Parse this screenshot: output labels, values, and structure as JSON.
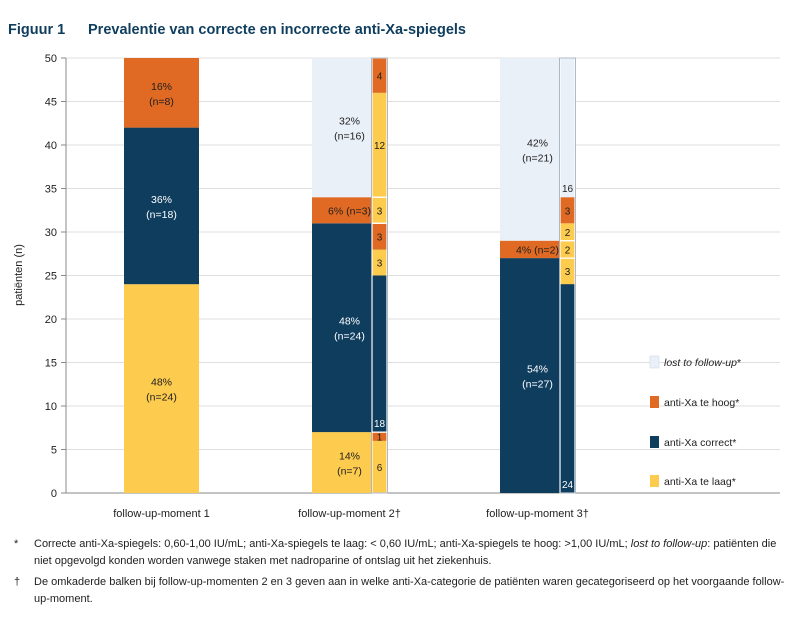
{
  "figure": {
    "label": "Figuur 1",
    "title": "Prevalentie van correcte en incorrecte anti-Xa-spiegels"
  },
  "colors": {
    "lost": "#eaf0f8",
    "hoog": "#e06a23",
    "correct": "#0e3d5e",
    "laag": "#fdcb4e",
    "axis": "#8a8a8a",
    "grid": "#d4d4d4"
  },
  "chart_data": {
    "type": "bar",
    "stacked": true,
    "ylabel": "patiënten (n)",
    "ylim": [
      0,
      50
    ],
    "yticks": [
      0,
      5,
      10,
      15,
      20,
      25,
      30,
      35,
      40,
      45,
      50
    ],
    "grid": true,
    "legend_position": "right",
    "categories": [
      "follow-up-moment 1",
      "follow-up-moment 2†",
      "follow-up-moment 3†"
    ],
    "legend": [
      {
        "key": "lost",
        "label": "lost to follow-up",
        "suffix": "*",
        "italic": true
      },
      {
        "key": "hoog",
        "label": "anti-Xa te hoog",
        "suffix": "*",
        "italic": false
      },
      {
        "key": "correct",
        "label": "anti-Xa correct",
        "suffix": "*",
        "italic": false
      },
      {
        "key": "laag",
        "label": "anti-Xa te laag",
        "suffix": "*",
        "italic": false
      }
    ],
    "main_bars": [
      {
        "category": "follow-up-moment 1",
        "segments": [
          {
            "key": "laag",
            "value": 24,
            "label": "48%",
            "sublabel": "(n=24)"
          },
          {
            "key": "correct",
            "value": 18,
            "label": "36%",
            "sublabel": "(n=18)"
          },
          {
            "key": "hoog",
            "value": 8,
            "label": "16%",
            "sublabel": "(n=8)"
          }
        ]
      },
      {
        "category": "follow-up-moment 2†",
        "segments": [
          {
            "key": "laag",
            "value": 7,
            "label": "14%",
            "sublabel": "(n=7)"
          },
          {
            "key": "correct",
            "value": 24,
            "label": "48%",
            "sublabel": "(n=24)"
          },
          {
            "key": "hoog",
            "value": 3,
            "label": "6% (n=3)",
            "sublabel": ""
          },
          {
            "key": "lost",
            "value": 16,
            "label": "32%",
            "sublabel": "(n=16)"
          }
        ]
      },
      {
        "category": "follow-up-moment 3†",
        "segments": [
          {
            "key": "correct",
            "value": 27,
            "label": "54%",
            "sublabel": "(n=27)"
          },
          {
            "key": "hoog",
            "value": 2,
            "label": "4% (n=2)",
            "sublabel": ""
          },
          {
            "key": "lost",
            "value": 21,
            "label": "42%",
            "sublabel": "(n=21)"
          }
        ]
      }
    ],
    "breakdown_bars": [
      {
        "category": "follow-up-moment 2†",
        "segments": [
          {
            "of": "laag",
            "key": "laag",
            "value": 6,
            "label": "6"
          },
          {
            "of": "laag",
            "key": "hoog",
            "value": 1,
            "label": "1"
          },
          {
            "of": "correct",
            "key": "correct",
            "value": 18,
            "label": "18"
          },
          {
            "of": "correct",
            "key": "laag",
            "value": 3,
            "label": "3"
          },
          {
            "of": "correct",
            "key": "hoog",
            "value": 3,
            "label": "3"
          },
          {
            "of": "hoog",
            "key": "laag",
            "value": 3,
            "label": "3"
          },
          {
            "of": "lost",
            "key": "laag",
            "value": 12,
            "label": "12"
          },
          {
            "of": "lost",
            "key": "hoog",
            "value": 4,
            "label": "4"
          }
        ]
      },
      {
        "category": "follow-up-moment 3†",
        "segments": [
          {
            "of": "correct",
            "key": "correct",
            "value": 24,
            "label": "24"
          },
          {
            "of": "correct",
            "key": "laag",
            "value": 3,
            "label": "3"
          },
          {
            "of": "hoog",
            "key": "laag",
            "value": 2,
            "label": "2"
          },
          {
            "of": "lost",
            "key": "laag",
            "value": 2,
            "label": "2"
          },
          {
            "of": "lost",
            "key": "hoog",
            "value": 3,
            "label": "3"
          },
          {
            "of": "lost",
            "key": "lost",
            "value": 16,
            "label": "16"
          }
        ]
      }
    ]
  },
  "footnotes": [
    {
      "symbol": "*",
      "parts": [
        {
          "text": "Correcte anti-Xa-spiegels: 0,60-1,00 IU/mL; anti-Xa-spiegels te laag: < 0,60 IU/mL; anti-Xa-spiegels te hoog: >1,00 IU/mL; ",
          "italic": false
        },
        {
          "text": "lost to follow-up",
          "italic": true
        },
        {
          "text": ": patiënten die niet opgevolgd konden worden vanwege staken met nadroparine of ontslag uit het ziekenhuis.",
          "italic": false
        }
      ]
    },
    {
      "symbol": "†",
      "parts": [
        {
          "text": "De omkaderde balken bij follow-up-momenten 2 en 3 geven aan in welke anti-Xa-categorie de patiënten waren gecategoriseerd op het voorgaande follow-up-moment.",
          "italic": false
        }
      ]
    }
  ]
}
